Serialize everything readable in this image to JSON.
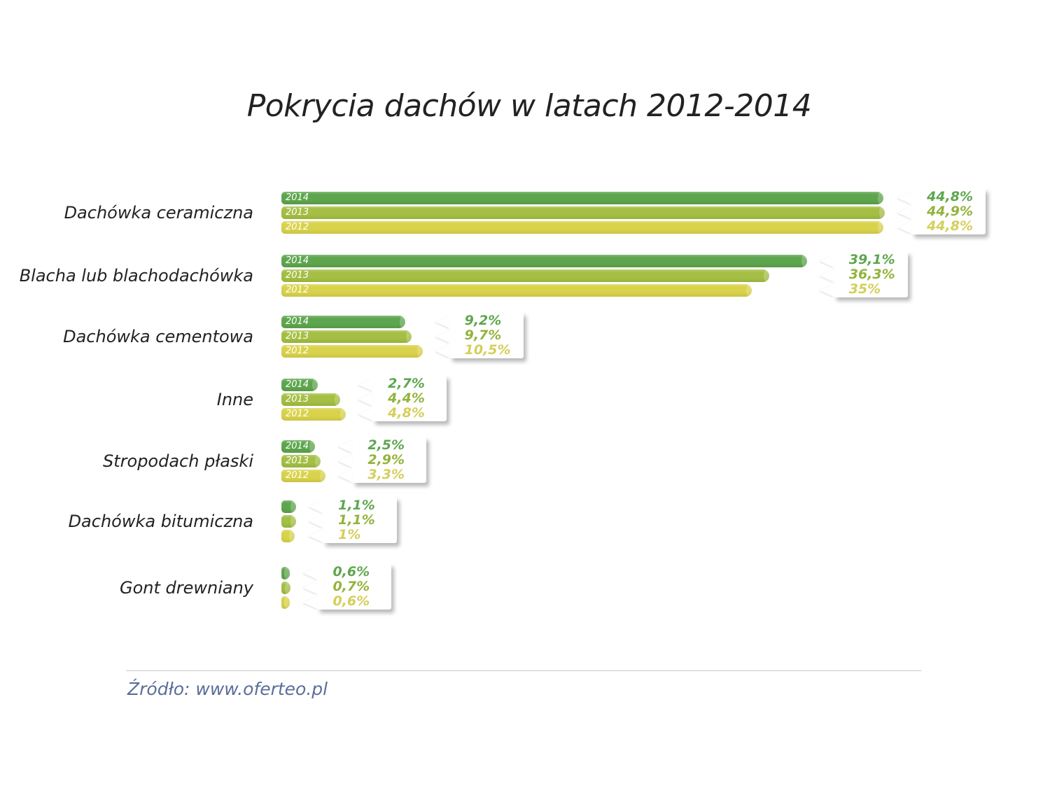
{
  "chart_data": {
    "type": "bar",
    "orientation": "horizontal",
    "title": "Pokrycia dachów w latach 2012-2014",
    "categories": [
      "Dachówka ceramiczna",
      "Blacha lub blachodachówka",
      "Dachówka cementowa",
      "Inne",
      "Stropodach płaski",
      "Dachówka bitumiczna",
      "Gont drewniany"
    ],
    "series": [
      {
        "name": "2014",
        "color": "#5ea64e",
        "values": [
          44.8,
          39.1,
          9.2,
          2.7,
          2.5,
          1.1,
          0.6
        ],
        "labels": [
          "44,8%",
          "39,1%",
          "9,2%",
          "2,7%",
          "2,5%",
          "1,1%",
          "0,6%"
        ]
      },
      {
        "name": "2013",
        "color": "#a4bf44",
        "values": [
          44.9,
          36.3,
          9.7,
          4.4,
          2.9,
          1.1,
          0.7
        ],
        "labels": [
          "44,9%",
          "36,3%",
          "9,7%",
          "4,4%",
          "2,9%",
          "1,1%",
          "0,7%"
        ]
      },
      {
        "name": "2012",
        "color": "#d9d34b",
        "values": [
          44.8,
          35,
          10.5,
          4.8,
          3.3,
          1,
          0.6
        ],
        "labels": [
          "44,8%",
          "35%",
          "10,5%",
          "4,8%",
          "3,3%",
          "1%",
          "0,6%"
        ]
      }
    ],
    "unit": "%",
    "grid": false
  },
  "source": "Źródło: www.oferteo.pl"
}
